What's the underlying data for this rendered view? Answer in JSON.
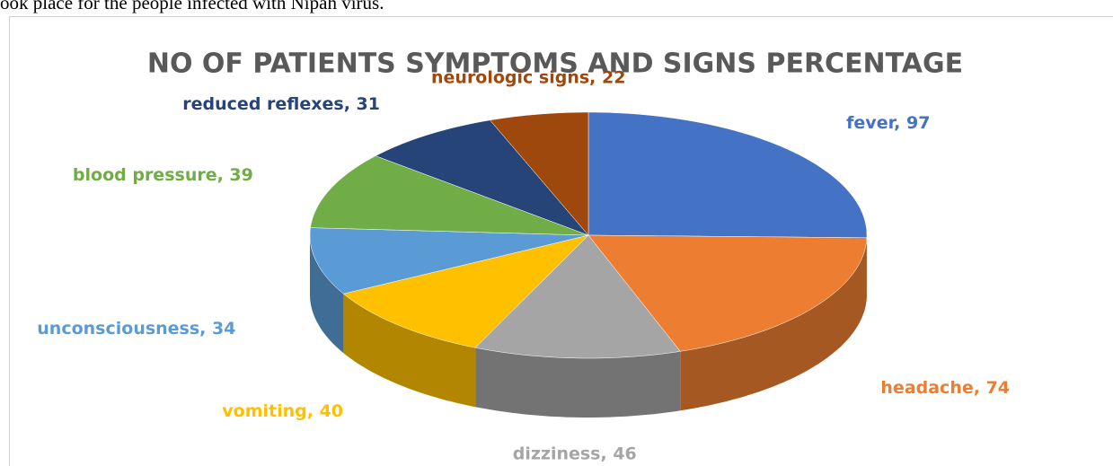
{
  "document_text": "ook place for the people infected with Nipah virus.",
  "chart_data": {
    "type": "pie",
    "title": "NO OF PATIENTS SYMPTOMS AND SIGNS PERCENTAGE",
    "categories": [
      "fever",
      "headache",
      "dizziness",
      "vomiting",
      "unconsciousness",
      "blood pressure",
      "reduced reflexes",
      "neurologic signs"
    ],
    "values": [
      97,
      74,
      46,
      40,
      34,
      39,
      31,
      22
    ],
    "value_labels": [
      "fever, 97",
      "headache, 74",
      "dizziness, 46",
      "vomiting, 40",
      "unconsciousness, 34",
      "blood pressure, 39",
      "reduced reflexes, 31",
      "neurologic signs, 22"
    ],
    "colors": [
      "#4472c4",
      "#ed7d31",
      "#a5a5a5",
      "#ffc000",
      "#5b9bd5",
      "#70ad47",
      "#264478",
      "#9e480e"
    ]
  }
}
